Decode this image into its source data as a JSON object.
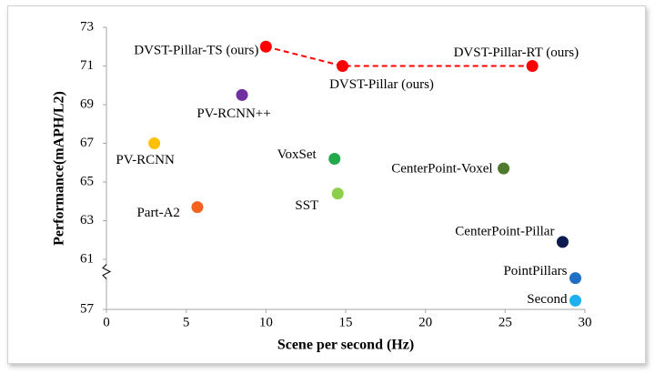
{
  "chart_data": {
    "type": "scatter",
    "x_label": "Scene per second (Hz)",
    "y_label": "Performance(mAPH/L2)",
    "xlim": [
      0,
      30
    ],
    "xticks": [
      0,
      5,
      10,
      15,
      20,
      25,
      30
    ],
    "ylim": [
      57,
      73
    ],
    "yticks": [
      57,
      61,
      63,
      65,
      67,
      69,
      71,
      73
    ],
    "axis_break": true,
    "grid": false,
    "series": [
      {
        "labels": [
          "DVST-Pillar-TS (ours)",
          "DVST-Pillar (ours)",
          "DVST-Pillar-RT (ours)"
        ],
        "x": [
          10,
          14.8,
          26.7
        ],
        "values": [
          72.0,
          71.0,
          71.0
        ],
        "color": "#ff0000",
        "line": "dashed"
      },
      {
        "labels": [
          "PV-RCNN++",
          "PV-RCNN",
          "Part-A2",
          "VoxSet",
          "SST",
          "CenterPoint-Voxel",
          "CenterPoint-Pillar",
          "PointPillars",
          "Second"
        ],
        "x": [
          8.5,
          3.0,
          5.7,
          14.3,
          14.5,
          24.9,
          28.6,
          29.4,
          29.4
        ],
        "values": [
          69.5,
          67.0,
          63.7,
          66.2,
          64.4,
          65.7,
          61.9,
          59.5,
          57.7
        ],
        "colors": [
          "#7030a0",
          "#ffc000",
          "#f4621e",
          "#22a94b",
          "#8ccf4a",
          "#4e7a2e",
          "#0d1a4f",
          "#1f6fc5",
          "#1fb0f0"
        ]
      }
    ]
  }
}
